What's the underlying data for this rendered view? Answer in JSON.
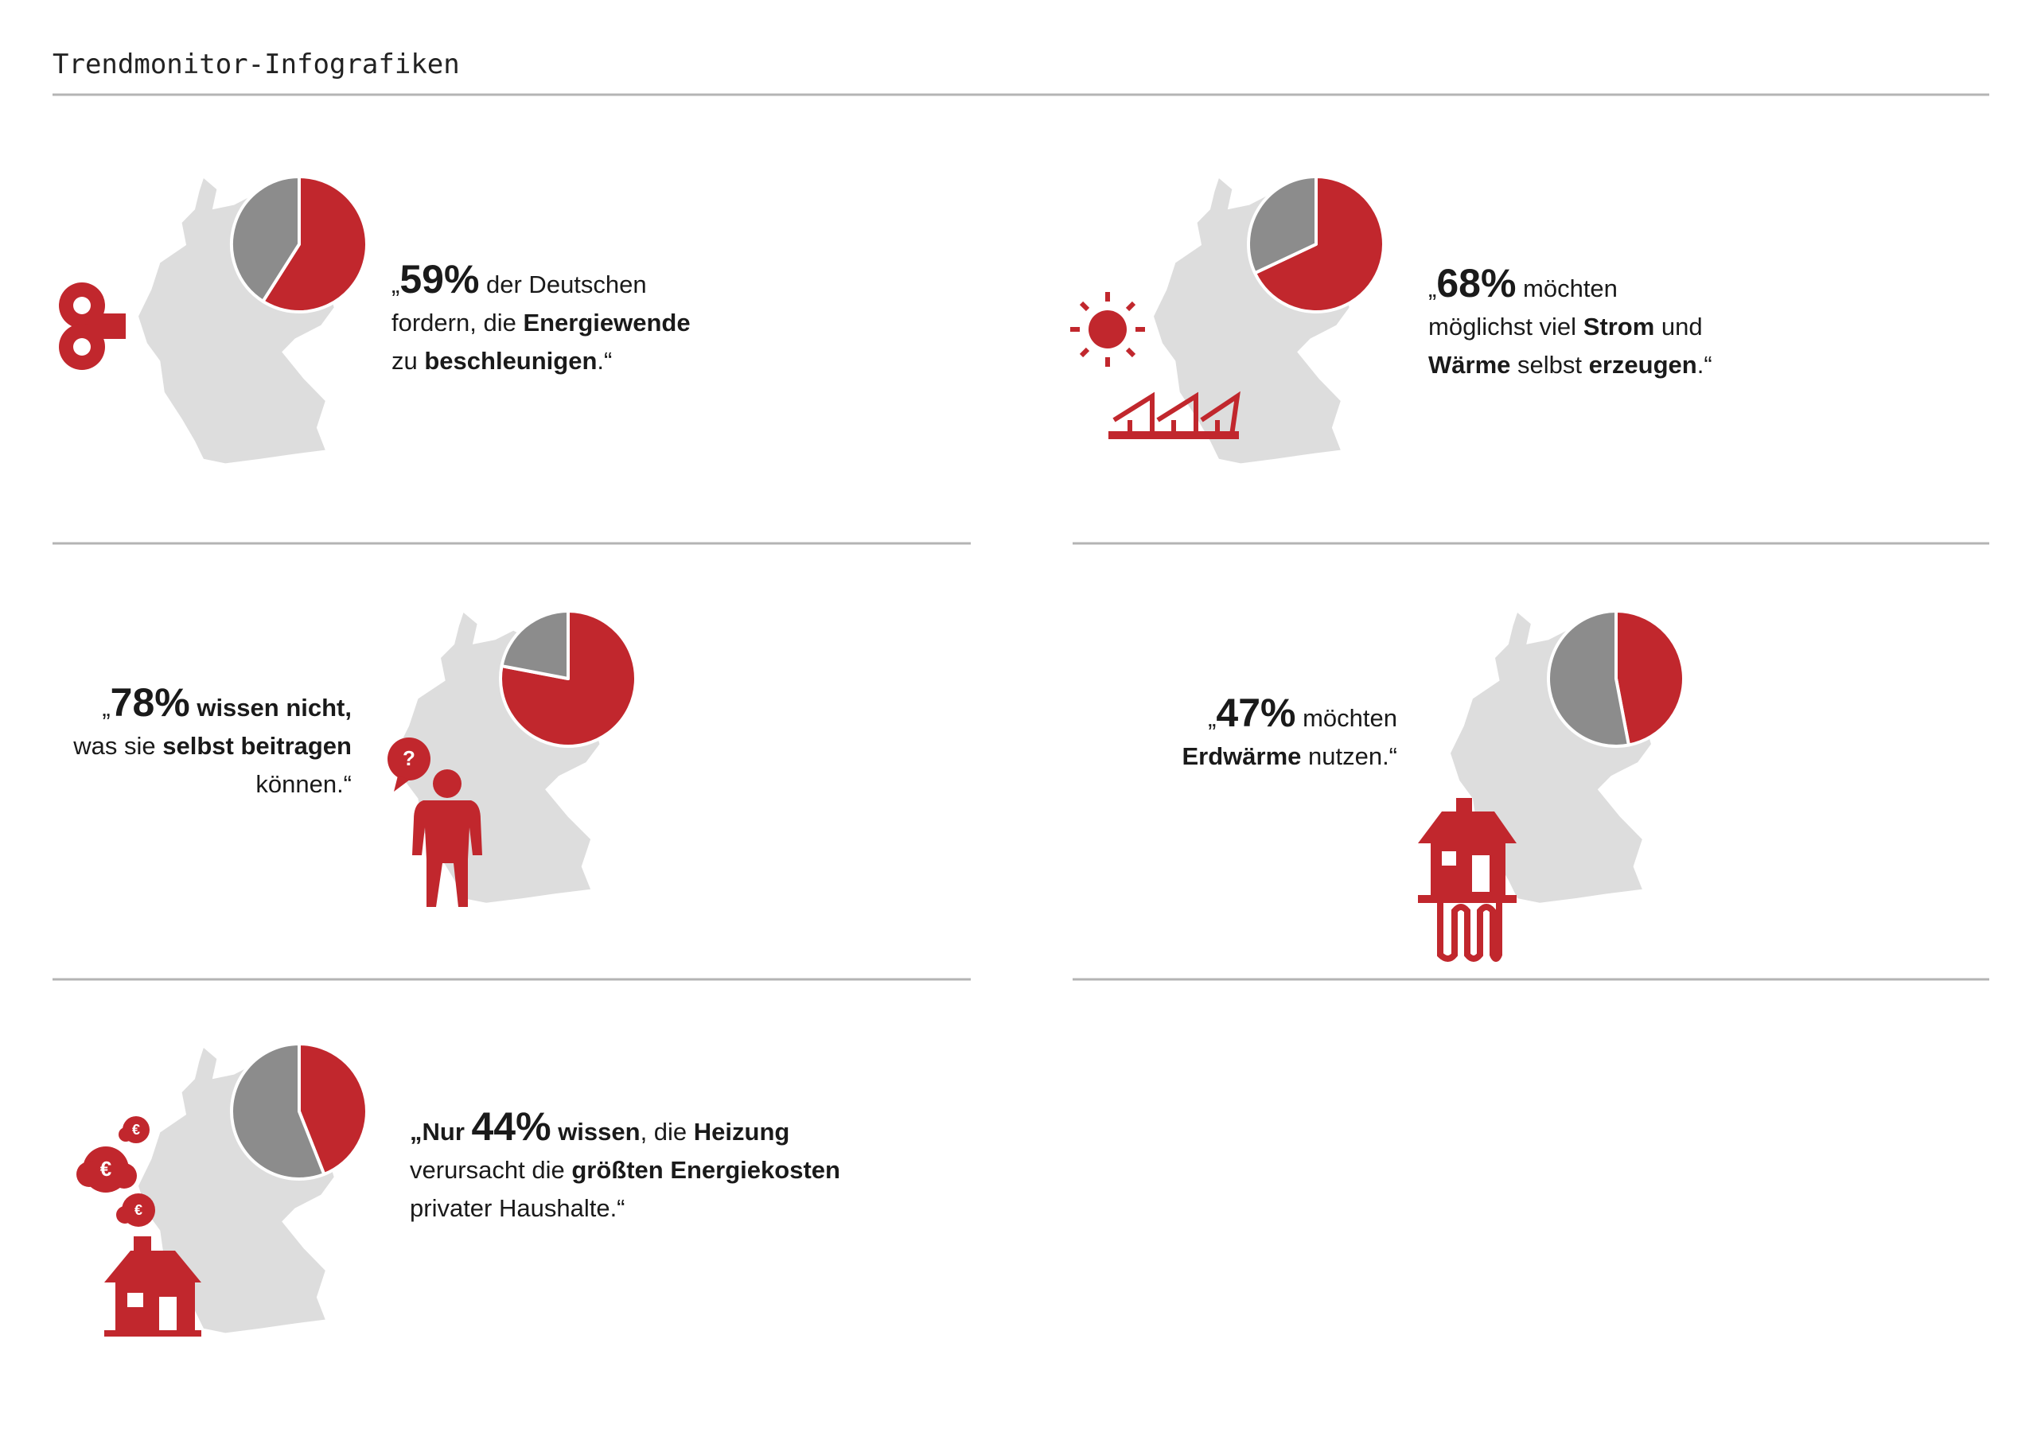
{
  "header": {
    "title": "Trendmonitor-Infografiken"
  },
  "chart_data": [
    {
      "type": "pie",
      "values": [
        59,
        41
      ],
      "colors": [
        "#c1272d",
        "#8c8c8c"
      ],
      "align": "left",
      "caption": [
        [
          {
            "text": "„",
            "style": "normal"
          },
          {
            "text": "59%",
            "style": "figure"
          },
          {
            "text": " der Deutschen",
            "style": "normal"
          }
        ],
        [
          {
            "text": "fordern, die ",
            "style": "normal"
          },
          {
            "text": "Energiewende",
            "style": "bold"
          }
        ],
        [
          {
            "text": "zu ",
            "style": "normal"
          },
          {
            "text": "beschleunigen",
            "style": "bold"
          },
          {
            "text": ".“",
            "style": "normal"
          }
        ]
      ]
    },
    {
      "type": "pie",
      "values": [
        68,
        32
      ],
      "colors": [
        "#c1272d",
        "#8c8c8c"
      ],
      "align": "left",
      "caption": [
        [
          {
            "text": "„",
            "style": "normal"
          },
          {
            "text": "68%",
            "style": "figure"
          },
          {
            "text": " möchten",
            "style": "normal"
          }
        ],
        [
          {
            "text": "möglichst viel ",
            "style": "normal"
          },
          {
            "text": "Strom",
            "style": "bold"
          },
          {
            "text": " und",
            "style": "normal"
          }
        ],
        [
          {
            "text": "Wärme",
            "style": "bold"
          },
          {
            "text": " selbst ",
            "style": "normal"
          },
          {
            "text": "erzeugen",
            "style": "bold"
          },
          {
            "text": ".“",
            "style": "normal"
          }
        ]
      ]
    },
    {
      "type": "pie",
      "values": [
        78,
        22
      ],
      "colors": [
        "#c1272d",
        "#8c8c8c"
      ],
      "align": "right",
      "icon_text": [
        "?"
      ],
      "caption": [
        [
          {
            "text": "„",
            "style": "normal"
          },
          {
            "text": "78%",
            "style": "figure"
          },
          {
            "text": " wissen nicht,",
            "style": "bold"
          }
        ],
        [
          {
            "text": "was sie ",
            "style": "normal"
          },
          {
            "text": "selbst beitragen",
            "style": "bold"
          }
        ],
        [
          {
            "text": "können.“",
            "style": "normal"
          }
        ]
      ]
    },
    {
      "type": "pie",
      "values": [
        47,
        53
      ],
      "colors": [
        "#c1272d",
        "#8c8c8c"
      ],
      "align": "right",
      "caption": [
        [
          {
            "text": "„",
            "style": "normal"
          },
          {
            "text": "47%",
            "style": "figure"
          },
          {
            "text": " möchten",
            "style": "normal"
          }
        ],
        [
          {
            "text": "Erdwärme",
            "style": "bold"
          },
          {
            "text": " nutzen.“",
            "style": "normal"
          }
        ]
      ]
    },
    {
      "type": "pie",
      "values": [
        44,
        56
      ],
      "colors": [
        "#c1272d",
        "#8c8c8c"
      ],
      "align": "left",
      "icon_text": [
        "€",
        "€",
        "€"
      ],
      "caption": [
        [
          {
            "text": "„Nur ",
            "style": "bold"
          },
          {
            "text": "44%",
            "style": "figure"
          },
          {
            "text": " wissen",
            "style": "bold"
          },
          {
            "text": ", die ",
            "style": "normal"
          },
          {
            "text": "Heizung",
            "style": "bold"
          }
        ],
        [
          {
            "text": "verursacht die ",
            "style": "normal"
          },
          {
            "text": "größten Energiekosten",
            "style": "bold"
          }
        ],
        [
          {
            "text": "privater Haushalte.“",
            "style": "normal"
          }
        ]
      ]
    }
  ]
}
